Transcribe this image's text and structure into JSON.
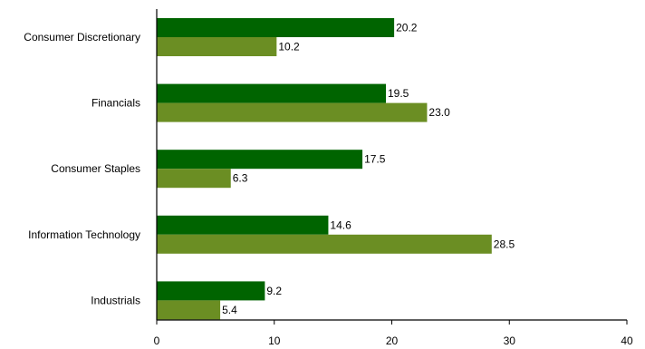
{
  "chart_data": {
    "type": "bar",
    "orientation": "horizontal",
    "categories": [
      "Consumer Discretionary",
      "Financials",
      "Consumer Staples",
      "Information Technology",
      "Industrials"
    ],
    "series": [
      {
        "values": [
          20.2,
          19.5,
          17.5,
          14.6,
          9.2
        ],
        "color": "#006400",
        "value_labels": [
          "20.2",
          "19.5",
          "17.5",
          "14.6",
          "9.2"
        ]
      },
      {
        "values": [
          10.2,
          23.0,
          6.3,
          28.5,
          5.4
        ],
        "color": "#6B8E23",
        "value_labels": [
          "10.2",
          "23.0",
          "6.3",
          "28.5",
          "5.4"
        ]
      }
    ],
    "xlim": [
      0,
      40
    ],
    "xticks": [
      0,
      10,
      20,
      30,
      40
    ],
    "xtick_labels": [
      "0",
      "10",
      "20",
      "30",
      "40"
    ],
    "grid": false,
    "legend": "none",
    "title": "",
    "xlabel": "",
    "ylabel": ""
  }
}
